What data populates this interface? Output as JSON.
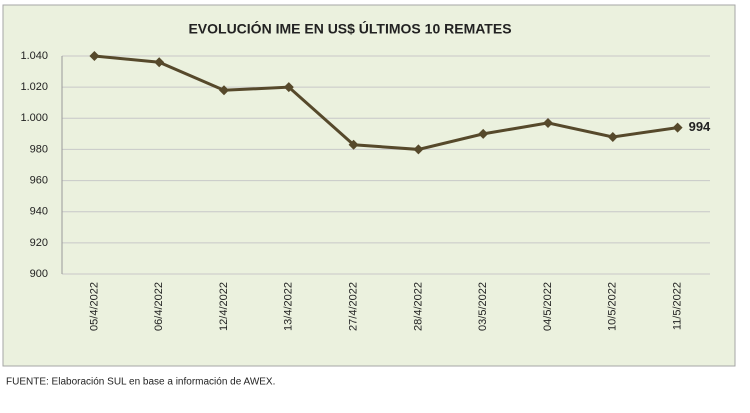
{
  "chart_data": {
    "type": "line",
    "title": "EVOLUCIÓN IME EN US$ ÚLTIMOS 10 REMATES",
    "categories": [
      "05/4/2022",
      "06/4/2022",
      "12/4/2022",
      "13/4/2022",
      "27/4/2022",
      "28/4/2022",
      "03/5/2022",
      "04/5/2022",
      "10/5/2022",
      "11/5/2022"
    ],
    "values": [
      1040,
      1036,
      1018,
      1020,
      983,
      980,
      990,
      997,
      988,
      994
    ],
    "color": "#56492b",
    "ylim": [
      900,
      1040
    ],
    "yticks": [
      {
        "value": 900,
        "label": "900"
      },
      {
        "value": 920,
        "label": "920"
      },
      {
        "value": 940,
        "label": "940"
      },
      {
        "value": 960,
        "label": "960"
      },
      {
        "value": 980,
        "label": "980"
      },
      {
        "value": 1000,
        "label": "1.000"
      },
      {
        "value": 1020,
        "label": "1.020"
      },
      {
        "value": 1040,
        "label": "1.040"
      }
    ],
    "grid": true,
    "source": "FUENTE: Elaboración SUL en base a información de AWEX."
  }
}
